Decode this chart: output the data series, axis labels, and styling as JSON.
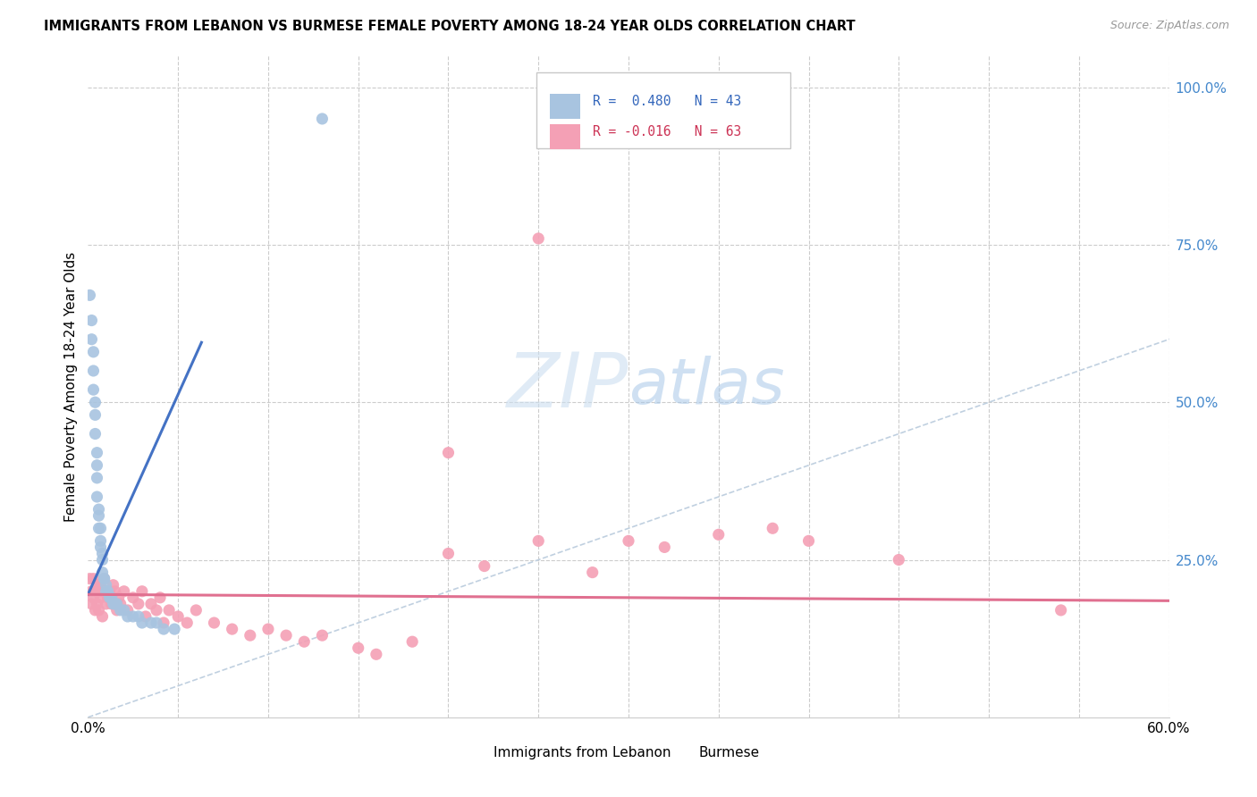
{
  "title": "IMMIGRANTS FROM LEBANON VS BURMESE FEMALE POVERTY AMONG 18-24 YEAR OLDS CORRELATION CHART",
  "source": "Source: ZipAtlas.com",
  "ylabel": "Female Poverty Among 18-24 Year Olds",
  "xmin": 0.0,
  "xmax": 0.6,
  "ymin": 0.0,
  "ymax": 1.05,
  "blue_R": 0.48,
  "blue_N": 43,
  "pink_R": -0.016,
  "pink_N": 63,
  "blue_color": "#a8c4e0",
  "pink_color": "#f4a0b5",
  "blue_line_color": "#4472c4",
  "pink_line_color": "#e07090",
  "diagonal_color": "#c0d0e0",
  "watermark_zip": "ZIP",
  "watermark_atlas": "atlas",
  "legend_label_blue": "Immigrants from Lebanon",
  "legend_label_pink": "Burmese",
  "blue_scatter_x": [
    0.001,
    0.002,
    0.002,
    0.003,
    0.003,
    0.003,
    0.004,
    0.004,
    0.004,
    0.005,
    0.005,
    0.005,
    0.005,
    0.006,
    0.006,
    0.006,
    0.007,
    0.007,
    0.007,
    0.008,
    0.008,
    0.008,
    0.009,
    0.009,
    0.01,
    0.01,
    0.011,
    0.012,
    0.013,
    0.014,
    0.015,
    0.016,
    0.018,
    0.02,
    0.022,
    0.025,
    0.028,
    0.03,
    0.035,
    0.038,
    0.042,
    0.048,
    0.13
  ],
  "blue_scatter_y": [
    0.67,
    0.63,
    0.6,
    0.58,
    0.55,
    0.52,
    0.5,
    0.48,
    0.45,
    0.42,
    0.4,
    0.38,
    0.35,
    0.33,
    0.32,
    0.3,
    0.3,
    0.28,
    0.27,
    0.26,
    0.25,
    0.23,
    0.22,
    0.22,
    0.21,
    0.2,
    0.2,
    0.19,
    0.19,
    0.18,
    0.18,
    0.18,
    0.17,
    0.17,
    0.16,
    0.16,
    0.16,
    0.15,
    0.15,
    0.15,
    0.14,
    0.14,
    0.95
  ],
  "pink_scatter_x": [
    0.001,
    0.002,
    0.002,
    0.003,
    0.003,
    0.004,
    0.004,
    0.005,
    0.005,
    0.006,
    0.006,
    0.007,
    0.007,
    0.008,
    0.008,
    0.009,
    0.01,
    0.01,
    0.011,
    0.012,
    0.013,
    0.014,
    0.015,
    0.016,
    0.017,
    0.018,
    0.02,
    0.022,
    0.025,
    0.028,
    0.03,
    0.032,
    0.035,
    0.038,
    0.04,
    0.042,
    0.045,
    0.05,
    0.055,
    0.06,
    0.07,
    0.08,
    0.09,
    0.1,
    0.11,
    0.12,
    0.13,
    0.15,
    0.16,
    0.18,
    0.2,
    0.22,
    0.25,
    0.28,
    0.3,
    0.32,
    0.35,
    0.38,
    0.4,
    0.45,
    0.2,
    0.25,
    0.54
  ],
  "pink_scatter_y": [
    0.22,
    0.2,
    0.18,
    0.22,
    0.19,
    0.2,
    0.17,
    0.21,
    0.18,
    0.2,
    0.17,
    0.21,
    0.19,
    0.2,
    0.16,
    0.22,
    0.2,
    0.18,
    0.19,
    0.2,
    0.18,
    0.21,
    0.2,
    0.17,
    0.19,
    0.18,
    0.2,
    0.17,
    0.19,
    0.18,
    0.2,
    0.16,
    0.18,
    0.17,
    0.19,
    0.15,
    0.17,
    0.16,
    0.15,
    0.17,
    0.15,
    0.14,
    0.13,
    0.14,
    0.13,
    0.12,
    0.13,
    0.11,
    0.1,
    0.12,
    0.26,
    0.24,
    0.28,
    0.23,
    0.28,
    0.27,
    0.29,
    0.3,
    0.28,
    0.25,
    0.42,
    0.76,
    0.17
  ],
  "blue_line_x": [
    0.0,
    0.063
  ],
  "blue_line_y": [
    0.195,
    0.595
  ],
  "pink_line_x": [
    0.0,
    0.6
  ],
  "pink_line_y": [
    0.195,
    0.185
  ]
}
